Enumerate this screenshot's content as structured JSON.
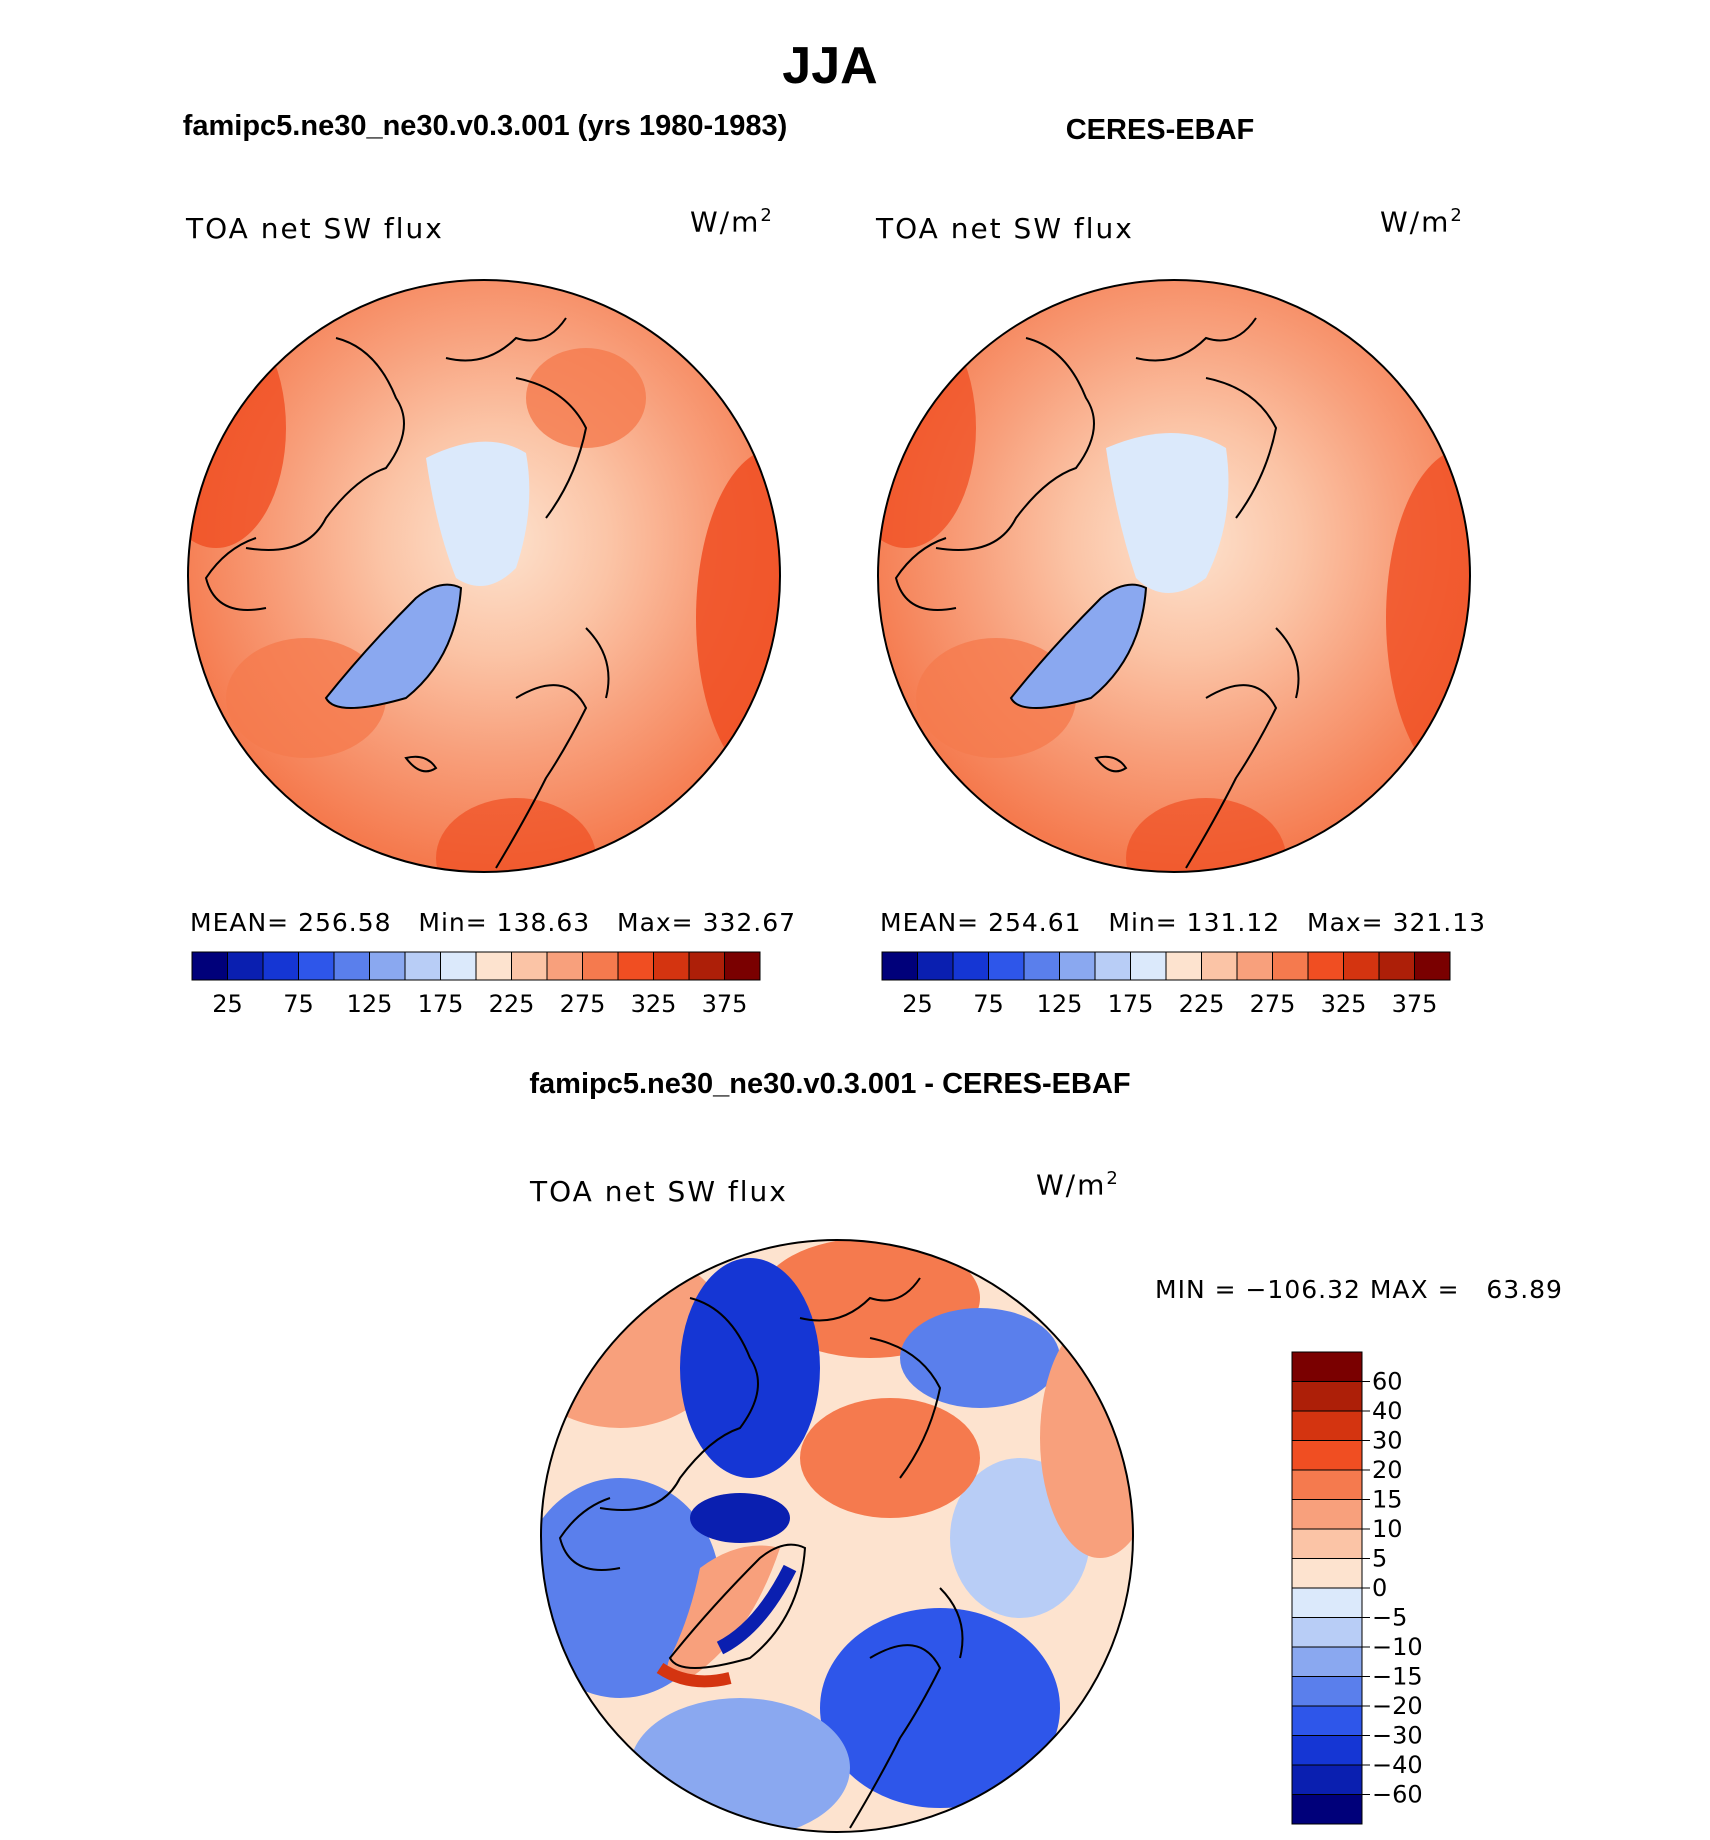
{
  "title": "JJA",
  "panels": [
    {
      "case_title": "famipc5.ne30_ne30.v0.3.001 (yrs 1980-1983)",
      "variable": "TOA net SW flux",
      "units": "W/m",
      "units_exp": "2",
      "stats": {
        "mean_label": "MEAN=",
        "mean": "256.58",
        "min_label": "Min=",
        "min": "138.63",
        "max_label": "Max=",
        "max": "332.67"
      }
    },
    {
      "case_title": "CERES-EBAF",
      "variable": "TOA net SW flux",
      "units": "W/m",
      "units_exp": "2",
      "stats": {
        "mean_label": "MEAN=",
        "mean": "254.61",
        "min_label": "Min=",
        "min": "131.12",
        "max_label": "Max=",
        "max": "321.13"
      }
    }
  ],
  "diff_panel": {
    "case_title": "famipc5.ne30_ne30.v0.3.001 - CERES-EBAF",
    "variable": "TOA net SW flux",
    "units": "W/m",
    "units_exp": "2",
    "minmax": "MIN = −106.32 MAX =   63.89"
  },
  "colorbar_abs": {
    "ticks": [
      "25",
      "75",
      "125",
      "175",
      "225",
      "275",
      "325",
      "375"
    ],
    "colors": [
      "#00007a",
      "#0a1fb0",
      "#1536d4",
      "#2e56ea",
      "#5a7fec",
      "#8aa8f0",
      "#b8cdf6",
      "#dbe9fb",
      "#fde3cf",
      "#fbc4a6",
      "#f8a07c",
      "#f57a4e",
      "#f04e22",
      "#d43410",
      "#ad1f08",
      "#7a0000"
    ]
  },
  "colorbar_diff": {
    "ticks": [
      "60",
      "40",
      "30",
      "20",
      "15",
      "10",
      "5",
      "0",
      "−5",
      "−10",
      "−15",
      "−20",
      "−30",
      "−40",
      "−60"
    ],
    "colors": [
      "#7a0000",
      "#ad1f08",
      "#d43410",
      "#f04e22",
      "#f57a4e",
      "#f8a07c",
      "#fbc4a6",
      "#fde3cf",
      "#dbe9fb",
      "#b8cdf6",
      "#8aa8f0",
      "#5a7fec",
      "#2e56ea",
      "#1536d4",
      "#0a1fb0",
      "#00007a"
    ]
  }
}
